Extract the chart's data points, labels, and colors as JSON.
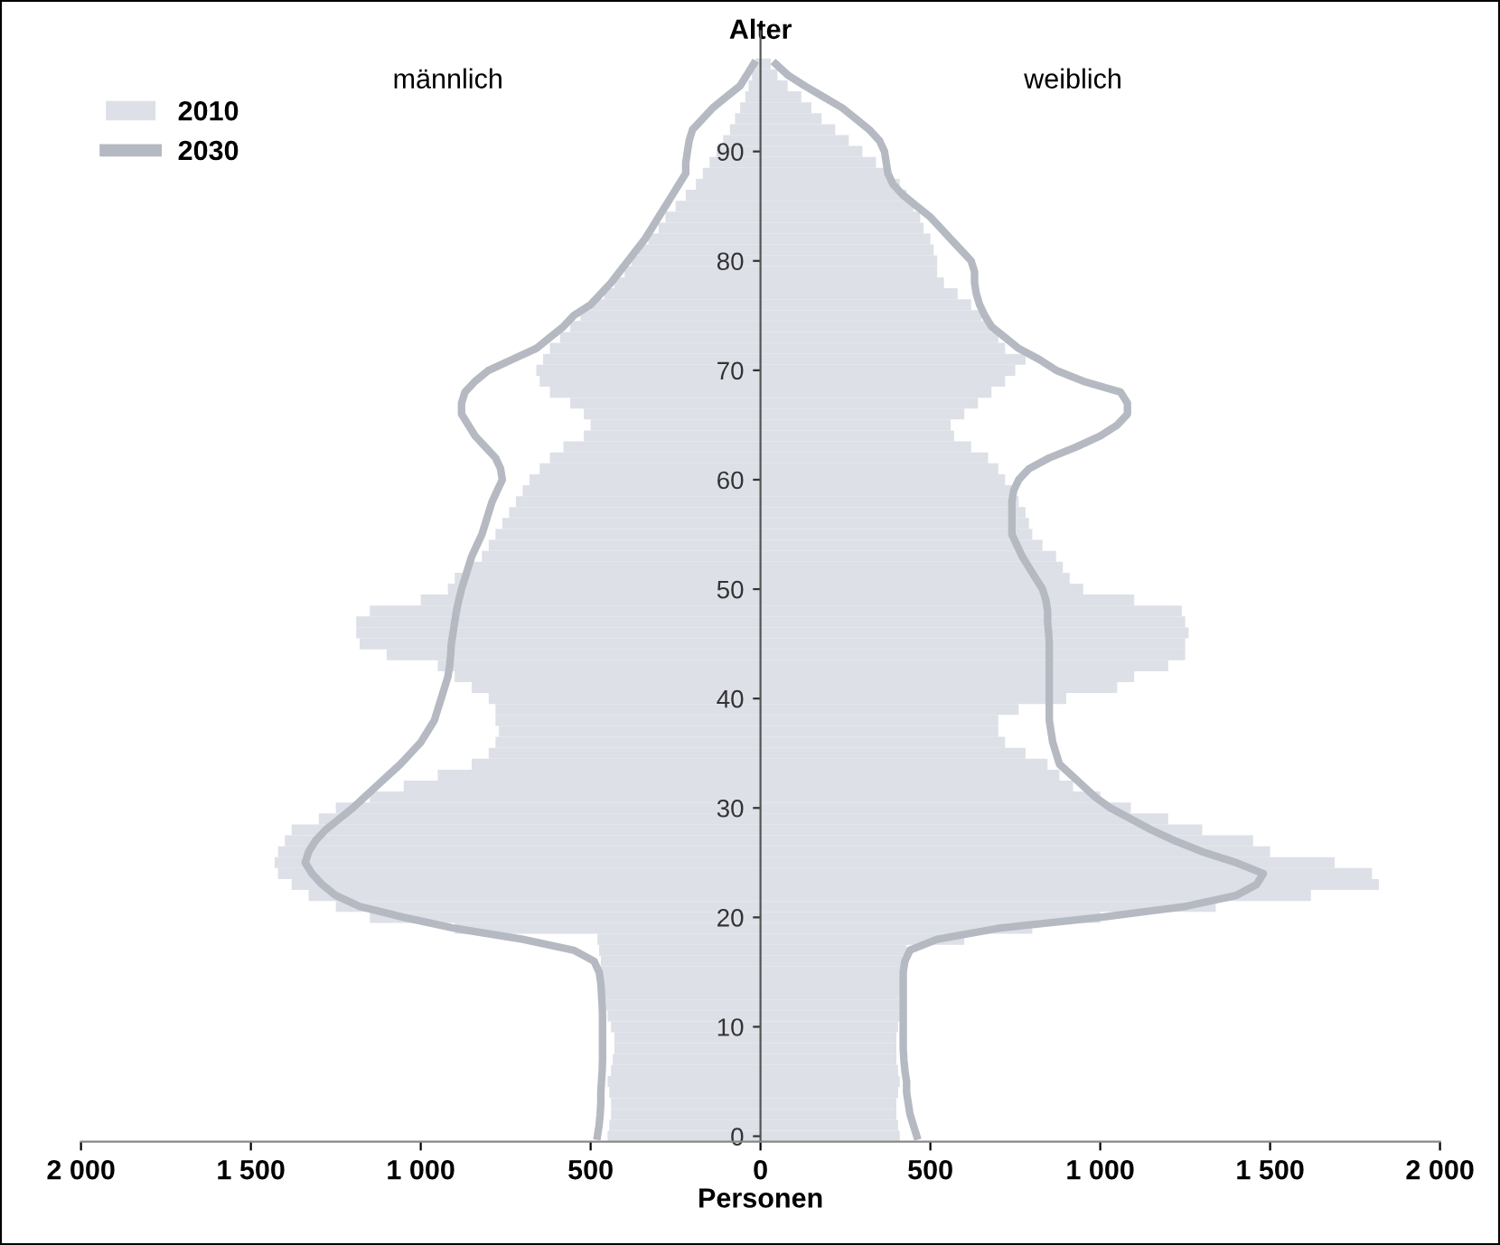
{
  "chart_data": {
    "type": "bar",
    "orientation": "horizontal",
    "xlabel": "Personen",
    "ylabel": "Alter",
    "annotations": [
      "männlich",
      "weiblich"
    ],
    "categories": [
      null,
      null,
      null,
      null,
      null,
      null,
      null,
      null,
      "90",
      null,
      null,
      null,
      null,
      null,
      null,
      null,
      null,
      null,
      "80",
      null,
      null,
      null,
      null,
      null,
      null,
      null,
      null,
      null,
      "70",
      null,
      null,
      null,
      null,
      null,
      null,
      null,
      null,
      null,
      "60",
      null,
      null,
      null,
      null,
      null,
      null,
      null,
      null,
      null,
      "50",
      null,
      null,
      null,
      null,
      null,
      null,
      null,
      null,
      null,
      "40",
      null,
      null,
      null,
      null,
      null,
      null,
      null,
      null,
      null,
      "30",
      null,
      null,
      null,
      null,
      null,
      null,
      null,
      null,
      null,
      "20",
      null,
      null,
      null,
      null,
      null,
      null,
      null,
      null,
      null,
      "10",
      null,
      null,
      null,
      null,
      null,
      null,
      null,
      null,
      null,
      "0"
    ],
    "xlim": [
      -2000,
      2000
    ],
    "xticks": [
      {
        "value": -2000,
        "label": "2 000"
      },
      {
        "value": -1500,
        "label": "1 500"
      },
      {
        "value": -1000,
        "label": "1 000"
      },
      {
        "value": -500,
        "label": "500"
      },
      0,
      500,
      {
        "value": 1000,
        "label": "1 000"
      },
      {
        "value": 1500,
        "label": "1 500"
      },
      {
        "value": 2000,
        "label": "2 000"
      }
    ],
    "grid": false,
    "legend": "top left",
    "stacked": true,
    "series": [
      {
        "name": "2010",
        "color": "#dde0e7",
        "values": [
          -15,
          -25,
          -35,
          -45,
          -60,
          -75,
          -90,
          -110,
          -130,
          -150,
          -170,
          -190,
          -220,
          -250,
          -280,
          -300,
          -330,
          -360,
          -380,
          -400,
          -430,
          -460,
          -500,
          -530,
          -560,
          -590,
          -620,
          -640,
          -660,
          -650,
          -620,
          -560,
          -520,
          -500,
          -520,
          -580,
          -620,
          -650,
          -680,
          -700,
          -720,
          -740,
          -760,
          -780,
          -800,
          -820,
          -860,
          -900,
          -920,
          -1000,
          -1150,
          -1190,
          -1190,
          -1180,
          -1100,
          -950,
          -900,
          -850,
          -800,
          -780,
          -780,
          -770,
          -780,
          -800,
          -850,
          -950,
          -1050,
          -1150,
          -1250,
          -1300,
          -1380,
          -1400,
          -1420,
          -1430,
          -1420,
          -1380,
          -1330,
          -1250,
          -1150,
          -900,
          -480,
          -475,
          -470,
          -470,
          -465,
          -460,
          -455,
          -450,
          -440,
          -430,
          -430,
          -435,
          -440,
          -450,
          -445,
          -440,
          -440,
          -445,
          -450
        ]
      },
      {
        "color": "#dde0e7",
        "values": [
          30,
          50,
          80,
          120,
          150,
          180,
          220,
          260,
          300,
          340,
          370,
          410,
          430,
          450,
          470,
          480,
          500,
          510,
          520,
          520,
          540,
          580,
          620,
          650,
          680,
          700,
          720,
          780,
          750,
          720,
          680,
          640,
          600,
          560,
          570,
          620,
          670,
          700,
          720,
          740,
          760,
          780,
          790,
          800,
          830,
          870,
          890,
          910,
          950,
          1100,
          1240,
          1250,
          1260,
          1250,
          1250,
          1200,
          1100,
          1050,
          900,
          760,
          700,
          700,
          720,
          780,
          845,
          880,
          920,
          1000,
          1090,
          1200,
          1300,
          1450,
          1500,
          1690,
          1800,
          1820,
          1620,
          1340,
          1000,
          800,
          600,
          430,
          420,
          420,
          415,
          415,
          410,
          410,
          405,
          400,
          400,
          400,
          405,
          410,
          405,
          400,
          400,
          405,
          410
        ]
      },
      {
        "name": "2030",
        "type": "line",
        "color": "#b5b9c1",
        "values": [
          -20,
          -40,
          -60,
          -100,
          -140,
          -170,
          -200,
          -210,
          -215,
          -220,
          -220,
          -240,
          -260,
          -280,
          -300,
          -320,
          -340,
          -365,
          -390,
          -415,
          -440,
          -470,
          -500,
          -550,
          -580,
          -620,
          -660,
          -730,
          -800,
          -840,
          -870,
          -880,
          -880,
          -860,
          -840,
          -810,
          -780,
          -765,
          -760,
          -775,
          -790,
          -800,
          -810,
          -820,
          -835,
          -850,
          -860,
          -870,
          -880,
          -888,
          -895,
          -900,
          -905,
          -910,
          -912,
          -915,
          -920,
          -930,
          -940,
          -950,
          -960,
          -980,
          -1000,
          -1030,
          -1060,
          -1095,
          -1130,
          -1165,
          -1200,
          -1240,
          -1280,
          -1310,
          -1330,
          -1340,
          -1320,
          -1290,
          -1250,
          -1180,
          -1050,
          -900,
          -700,
          -550,
          -490,
          -475,
          -470,
          -468,
          -466,
          -465,
          -465,
          -465,
          -465,
          -465,
          -466,
          -468,
          -470,
          -470,
          -472,
          -475,
          -480
        ]
      },
      {
        "type": "line",
        "color": "#b5b9c1",
        "values": [
          45,
          80,
          130,
          185,
          240,
          280,
          320,
          350,
          365,
          370,
          375,
          390,
          420,
          460,
          500,
          530,
          560,
          590,
          620,
          630,
          630,
          635,
          645,
          660,
          680,
          720,
          760,
          820,
          870,
          950,
          1060,
          1080,
          1080,
          1050,
          1000,
          930,
          850,
          790,
          760,
          745,
          740,
          740,
          740,
          740,
          755,
          770,
          790,
          810,
          830,
          840,
          845,
          845,
          848,
          850,
          850,
          850,
          850,
          850,
          850,
          850,
          850,
          855,
          860,
          870,
          880,
          915,
          950,
          985,
          1030,
          1090,
          1150,
          1220,
          1300,
          1400,
          1480,
          1460,
          1400,
          1250,
          1000,
          700,
          520,
          440,
          425,
          420,
          420,
          420,
          420,
          420,
          420,
          420,
          420,
          422,
          425,
          430,
          430,
          435,
          440,
          450,
          460
        ]
      }
    ]
  }
}
